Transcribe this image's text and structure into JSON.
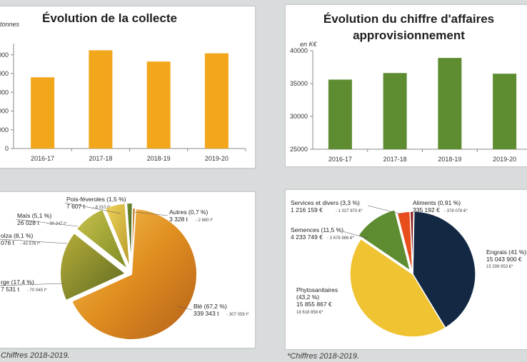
{
  "panels": {
    "collecte": {
      "title": "Évolution de la collecte",
      "chart_data": {
        "type": "bar",
        "ylabel": "tonnes",
        "categories": [
          "2016-17",
          "2017-18",
          "2018-19",
          "2019-20"
        ],
        "values": [
          190000,
          262000,
          232000,
          254000
        ],
        "ylim": [
          0,
          280000
        ],
        "yticks": [
          0,
          50000,
          100000,
          150000,
          200000,
          250000
        ],
        "ytick_labels": [
          "0",
          "000",
          "000",
          "000",
          "000",
          "000"
        ],
        "color": "#f1a61c"
      }
    },
    "ca": {
      "title_line1": "Évolution du chiffre d'affaires",
      "title_line2": "approvisionnement",
      "chart_data": {
        "type": "bar",
        "ylabel": "en K€",
        "categories": [
          "2016-17",
          "2017-18",
          "2018-19",
          "2019-20"
        ],
        "values": [
          35600,
          36600,
          38900,
          36500
        ],
        "ylim": [
          25000,
          40000
        ],
        "yticks": [
          25000,
          30000,
          35000,
          40000
        ],
        "ytick_labels": [
          "25000",
          "30000",
          "35000",
          "40000"
        ],
        "color": "#5e8c31"
      }
    },
    "cereales": {
      "chart_data": {
        "type": "pie",
        "slices": [
          {
            "name": "Blé",
            "pct": 67.2,
            "label": "Blé (67,2 %)",
            "detail": "339 343 t",
            "prev": "- 307 059 t*",
            "color": "#e39a2a"
          },
          {
            "name": "Orge",
            "pct": 17.4,
            "label": "rge (17,4 %)",
            "detail": "7 531 t",
            "prev": "- 70 045 t*",
            "color": "#8a8f2a"
          },
          {
            "name": "Colza",
            "pct": 8.1,
            "label": "olza (8,1 %)",
            "detail": "076 t",
            "prev": "- 43 576 t*",
            "color": "#a6b22f"
          },
          {
            "name": "Maïs",
            "pct": 5.1,
            "label": "Maïs (5,1 %)",
            "detail": "26 028 t",
            "prev": "- 30 247 t*",
            "color": "#d7be3e"
          },
          {
            "name": "Pois-féveroles",
            "pct": 1.5,
            "label": "Pois-féveroles (1,5 %)",
            "detail": "7 607 t",
            "prev": "- 8 310 t*",
            "color": "#5f7a26"
          },
          {
            "name": "Autres",
            "pct": 0.7,
            "label": "Autres (0,7 %)",
            "detail": "3 328 t",
            "prev": "- 2 680 t*",
            "color": "#c07a1a"
          }
        ]
      },
      "footnote": "Chiffres 2018-2019."
    },
    "appro": {
      "chart_data": {
        "type": "pie",
        "slices": [
          {
            "name": "Engrais",
            "pct": 41,
            "label": "Engrais (41 %)",
            "detail": "15 043 900 €",
            "prev": "15 299 953 €*",
            "color": "#132843"
          },
          {
            "name": "Phytosanitaires",
            "pct": 43.2,
            "label1": "Phytosanitaires",
            "label2": "(43,2 %)",
            "detail": "15 855 867 €",
            "prev": "18 618 858 €*",
            "color": "#f0c332"
          },
          {
            "name": "Semences",
            "pct": 11.5,
            "label": "Semences (11,5 %)",
            "detail": "4 233 749 €",
            "prev": "- 3 678 986 €*",
            "color": "#5e8c31"
          },
          {
            "name": "Services et divers",
            "pct": 3.3,
            "label": "Services et divers (3,3 %)",
            "detail": "1 216 159 €",
            "prev": "- 1 027 870 €*",
            "color": "#e84e1b"
          },
          {
            "name": "Aliments",
            "pct": 0.91,
            "label": "Aliments (0,91 %)",
            "detail": "335 192 €",
            "prev": "- 378 078 €*",
            "color": "#8b1e1e"
          }
        ]
      },
      "footnote": "*Chiffres 2018-2019."
    }
  }
}
